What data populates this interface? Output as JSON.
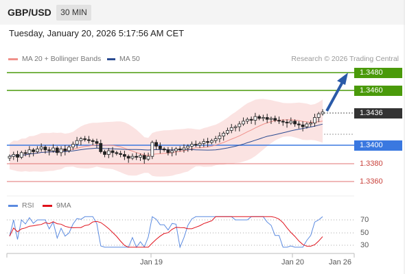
{
  "header": {
    "pair": "GBP/USD",
    "timeframe": "30 MIN"
  },
  "datetime": "Tuesday, January 20, 2026 5:17:56 AM CET",
  "legend": {
    "ma20_label": "MA 20 + Bollinger Bands",
    "ma50_label": "MA 50",
    "credit": "Research © 2026 Trading Central"
  },
  "colors": {
    "green": "#4a9a0a",
    "blue": "#3a78e0",
    "red": "#e05a50",
    "dark": "#333333",
    "candle": "#222222"
  },
  "levels": {
    "r2": "1.3480",
    "r1": "1.3460",
    "last": "1.3436",
    "pivot": "1.3400",
    "s1": "1.3380",
    "s2": "1.3360"
  },
  "rsi": {
    "rsi_label": "RSI",
    "ma_label": "9MA",
    "ticks": [
      "70",
      "50",
      "30"
    ]
  },
  "xaxis": {
    "labels": [
      "Jan 19",
      "Jan 20",
      "Jan 26"
    ]
  },
  "chart_data": {
    "type": "line",
    "price_close": [
      1.3388,
      1.339,
      1.3387,
      1.3392,
      1.3391,
      1.3395,
      1.3393,
      1.3396,
      1.3398,
      1.3395,
      1.3394,
      1.3397,
      1.3392,
      1.3396,
      1.3394,
      1.3398,
      1.3401,
      1.3405,
      1.3407,
      1.3406,
      1.3405,
      1.3404,
      1.3402,
      1.3393,
      1.339,
      1.3394,
      1.3392,
      1.3391,
      1.339,
      1.3388,
      1.3386,
      1.3388,
      1.3387,
      1.3389,
      1.3385,
      1.3388,
      1.3403,
      1.3399,
      1.3396,
      1.3395,
      1.3392,
      1.3394,
      1.3396,
      1.3395,
      1.3397,
      1.3399,
      1.3401,
      1.34,
      1.3402,
      1.3404,
      1.3403,
      1.3405,
      1.3407,
      1.341,
      1.3413,
      1.3416,
      1.3419,
      1.342,
      1.3423,
      1.3426,
      1.3428,
      1.3427,
      1.3431,
      1.3429,
      1.343,
      1.3428,
      1.3429,
      1.3427,
      1.3426,
      1.3425,
      1.3424,
      1.3426,
      1.3423,
      1.3422,
      1.342,
      1.3423,
      1.3424,
      1.343,
      1.3434,
      1.3436
    ],
    "levels": [
      1.348,
      1.346,
      1.3436,
      1.34,
      1.338,
      1.336
    ],
    "rsi_ticks": [
      70,
      50,
      30
    ]
  }
}
